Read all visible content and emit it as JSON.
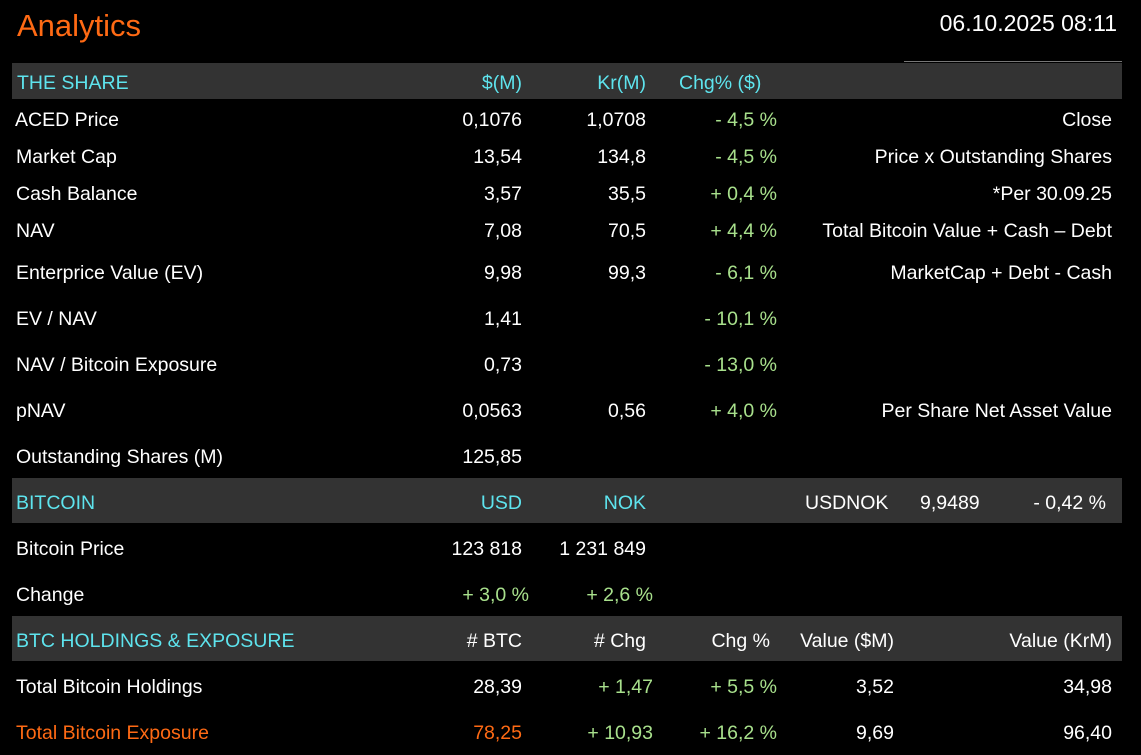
{
  "header": {
    "title": "Analytics",
    "datetime": "06.10.2025 08:11"
  },
  "share": {
    "section": "THE SHARE",
    "col_usd": "$(M)",
    "col_nok": "Kr(M)",
    "col_chg": "Chg% ($)",
    "rows": [
      {
        "label": "ACED Price",
        "usd": "0,1076",
        "nok": "1,0708",
        "chg": "- 4,5 %",
        "note": "Close"
      },
      {
        "label": "Market Cap",
        "usd": "13,54",
        "nok": "134,8",
        "chg": "- 4,5 %",
        "note": "Price x Outstanding Shares"
      },
      {
        "label": "Cash Balance",
        "usd": "3,57",
        "nok": "35,5",
        "chg": "+ 0,4 %",
        "note": "*Per 30.09.25"
      },
      {
        "label": "NAV",
        "usd": "7,08",
        "nok": "70,5",
        "chg": "+ 4,4 %",
        "note": "Total Bitcoin Value + Cash – Debt"
      },
      {
        "label": "Enterprice Value (EV)",
        "usd": "9,98",
        "nok": "99,3",
        "chg": "- 6,1 %",
        "note": "MarketCap + Debt - Cash"
      },
      {
        "label": "EV / NAV",
        "usd": "1,41",
        "nok": "",
        "chg": "- 10,1 %",
        "note": ""
      },
      {
        "label": "NAV / Bitcoin Exposure",
        "usd": "0,73",
        "nok": "",
        "chg": "- 13,0 %",
        "note": ""
      },
      {
        "label": "pNAV",
        "usd": "0,0563",
        "nok": "0,56",
        "chg": "+ 4,0 %",
        "note": "Per Share Net Asset Value"
      },
      {
        "label": "Outstanding Shares (M)",
        "usd": "125,85",
        "nok": "",
        "chg": "",
        "note": ""
      }
    ]
  },
  "bitcoin": {
    "section": "BITCOIN",
    "col_usd": "USD",
    "col_nok": "NOK",
    "fx_label": "USDNOK",
    "fx_value": "9,9489",
    "fx_chg": "- 0,42 %",
    "price_label": "Bitcoin Price",
    "price_usd": "123 818",
    "price_nok": "1 231 849",
    "change_label": "Change",
    "change_usd": "+ 3,0 %",
    "change_nok": "+ 2,6 %"
  },
  "holdings": {
    "section": "BTC HOLDINGS & EXPOSURE",
    "col_btc": "# BTC",
    "col_chg_btc": "# Chg",
    "col_chg_pct": "Chg %",
    "col_value_usd": "Value ($M)",
    "col_value_nok": "Value (KrM)",
    "rows": [
      {
        "label": "Total Bitcoin Holdings",
        "btc": "28,39",
        "chg": "+ 1,47",
        "pct": "+ 5,5 %",
        "usd": "3,52",
        "nok": "34,98"
      },
      {
        "label": "Total Bitcoin Exposure",
        "btc": "78,25",
        "chg": "+ 10,93",
        "pct": "+ 16,2 %",
        "usd": "9,69",
        "nok": "96,40"
      }
    ]
  },
  "colors": {
    "accent": "#ff6a14",
    "header_text": "#5ee4ee",
    "positive": "#a8e08c",
    "band": "#333333"
  }
}
